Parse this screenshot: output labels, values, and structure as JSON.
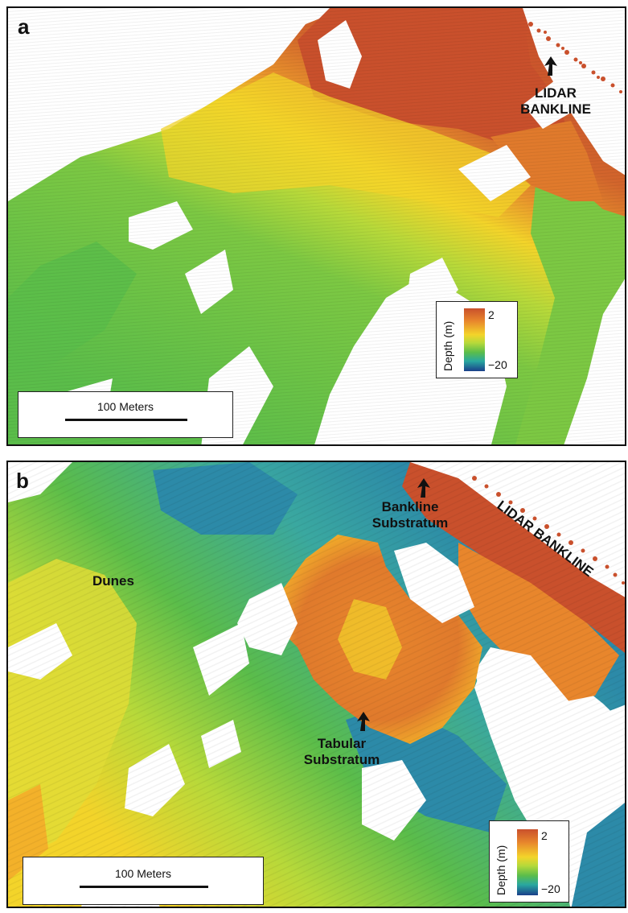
{
  "panel_a": {
    "letter": "a",
    "annotation_line1": "LIDAR",
    "annotation_line2": "BANKLINE",
    "scale_label": "100 Meters",
    "legend": {
      "title": "Depth (m)",
      "max": "2",
      "min": "−20"
    }
  },
  "panel_b": {
    "letter": "b",
    "bankline_substratum_line1": "Bankline",
    "bankline_substratum_line2": "Substratum",
    "lidar_bankline": "LIDAR BANKLINE",
    "dunes": "Dunes",
    "tabular_line1": "Tabular",
    "tabular_line2": "Substratum",
    "scale_label": "100 Meters",
    "legend": {
      "title": "Depth (m)",
      "max": "2",
      "min": "−20"
    }
  },
  "colors": {
    "shallow": "#c9502c",
    "mid_orange": "#e8862c",
    "yellow": "#f3d42a",
    "green": "#5bbd4a",
    "teal": "#29a8a0",
    "deep": "#1a3f8a"
  },
  "icons": [
    "arrow-up-icon"
  ]
}
